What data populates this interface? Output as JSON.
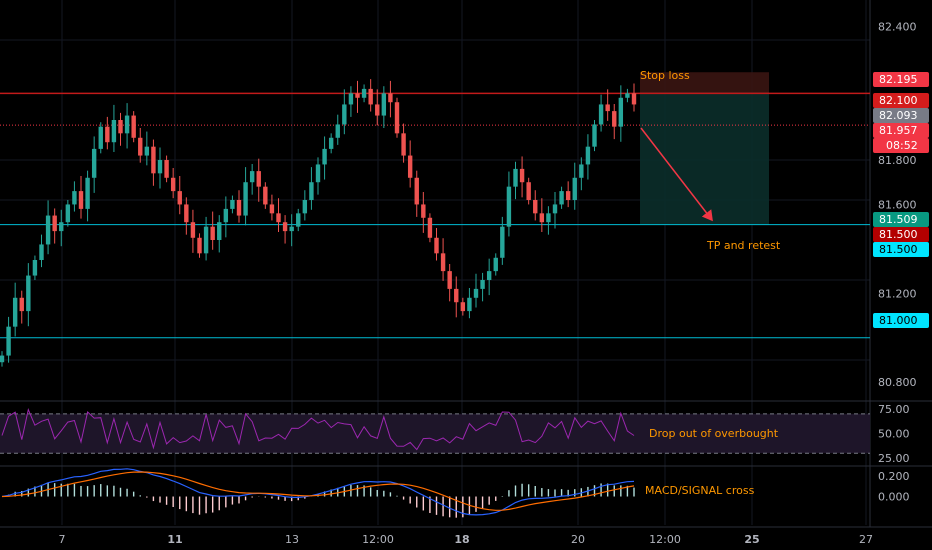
{
  "chart_data": [
    {
      "type": "candlestick",
      "panel": "price",
      "ylim": [
        80.72,
        82.52
      ],
      "y_ticks": [
        "82.400",
        "81.800",
        "81.600",
        "81.200",
        "80.800"
      ],
      "x_ticks": [
        "7",
        "11",
        "13",
        "12:00",
        "18",
        "20",
        "12:00",
        "25",
        "27"
      ],
      "bold_x_ticks": [
        "11",
        "18",
        "25"
      ],
      "close_series": [
        80.92,
        81.05,
        81.18,
        81.12,
        81.28,
        81.35,
        81.42,
        81.55,
        81.48,
        81.52,
        81.6,
        81.66,
        81.58,
        81.72,
        81.85,
        81.95,
        81.88,
        81.98,
        81.92,
        82.0,
        81.9,
        81.82,
        81.86,
        81.74,
        81.8,
        81.72,
        81.66,
        81.6,
        81.52,
        81.45,
        81.38,
        81.5,
        81.44,
        81.52,
        81.58,
        81.62,
        81.55,
        81.7,
        81.75,
        81.68,
        81.6,
        81.56,
        81.52,
        81.48,
        81.5,
        81.56,
        81.62,
        81.7,
        81.78,
        81.85,
        81.9,
        81.96,
        82.05,
        82.1,
        82.08,
        82.12,
        82.05,
        82.0,
        82.1,
        82.06,
        81.92,
        81.82,
        81.72,
        81.6,
        81.54,
        81.45,
        81.38,
        81.3,
        81.22,
        81.16,
        81.12,
        81.18,
        81.22,
        81.26,
        81.3,
        81.36,
        81.5,
        81.68,
        81.76,
        81.7,
        81.62,
        81.56,
        81.52,
        81.56,
        81.6,
        81.66,
        81.62,
        81.72,
        81.78,
        81.86,
        81.96,
        82.05,
        82.02,
        81.95,
        82.08,
        82.1,
        82.05
      ],
      "horizontal_levels": [
        {
          "label": "82.195",
          "value": 82.195,
          "color": "#f23645"
        },
        {
          "label": "82.100",
          "value": 82.1,
          "color": "#ff2d2d"
        },
        {
          "label": "82.093",
          "value": 82.093,
          "color": "#787b86"
        },
        {
          "label": "81.957",
          "value": 81.957,
          "color": "#f23645"
        },
        {
          "label": "81.509",
          "value": 81.509,
          "color": "#089981"
        },
        {
          "label": "81.500",
          "value": 81.5,
          "color": "#d90000"
        },
        {
          "label": "81.500",
          "value": 81.5,
          "color": "#00e5ff"
        },
        {
          "label": "81.000",
          "value": 81.0,
          "color": "#00e5ff"
        }
      ],
      "countdown": "08:52",
      "position": {
        "type": "short",
        "entry": 82.1,
        "stop": 82.195,
        "target": 81.509
      },
      "annotations": [
        "Stop loss",
        "TP and retest"
      ]
    },
    {
      "type": "line",
      "panel": "RSI",
      "ylim": [
        18,
        82
      ],
      "y_ticks": [
        "75.00",
        "50.00",
        "25.00"
      ],
      "bands": [
        30,
        70
      ],
      "annotation": "Drop out of overbought"
    },
    {
      "type": "line",
      "panel": "MACD",
      "ylim": [
        -0.28,
        0.3
      ],
      "y_ticks": [
        "0.200",
        "0.000"
      ],
      "series": [
        {
          "color": "#2962ff"
        },
        {
          "color": "#ff6d00"
        }
      ],
      "annotation": "MACD/SIGNAL cross"
    }
  ],
  "colors": {
    "up": "#26a69a",
    "down": "#ef5350",
    "rsi": "#9c27b0",
    "band": "#1e1529"
  }
}
